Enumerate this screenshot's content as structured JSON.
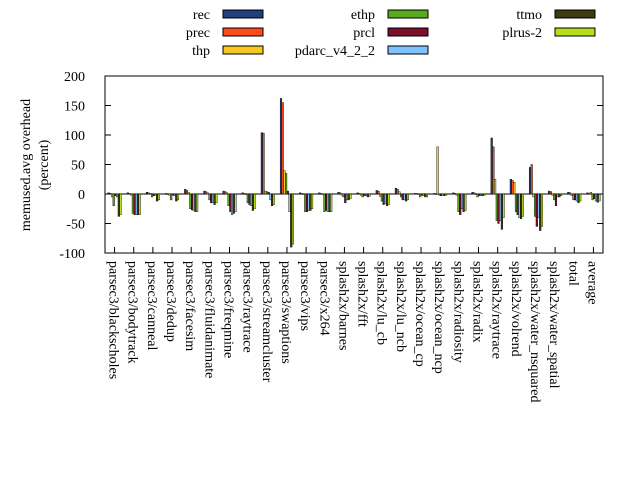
{
  "chart_data": {
    "type": "bar",
    "ylabel_lines": [
      "memused.avg overhead",
      "(percent)"
    ],
    "ylim": [
      -100,
      200
    ],
    "yticks": [
      -100,
      -50,
      0,
      50,
      100,
      150,
      200
    ],
    "categories": [
      "parsec3/blackscholes",
      "parsec3/bodytrack",
      "parsec3/canneal",
      "parsec3/dedup",
      "parsec3/facesim",
      "parsec3/fluidanimate",
      "parsec3/freqmine",
      "parsec3/raytrace",
      "parsec3/streamcluster",
      "parsec3/swaptions",
      "parsec3/vips",
      "parsec3/x264",
      "splash2x/barnes",
      "splash2x/fft",
      "splash2x/lu_cb",
      "splash2x/lu_ncb",
      "splash2x/ocean_cp",
      "splash2x/ocean_ncp",
      "splash2x/radiosity",
      "splash2x/radix",
      "splash2x/raytrace",
      "splash2x/volrend",
      "splash2x/water_nsquared",
      "splash2x/water_spatial",
      "total",
      "average"
    ],
    "series": [
      {
        "name": "rec",
        "color": "#1f3f7f",
        "values": [
          2,
          2,
          3,
          1,
          8,
          5,
          5,
          2,
          104,
          162,
          2,
          2,
          3,
          2,
          6,
          10,
          1,
          1,
          2,
          3,
          95,
          25,
          45,
          5,
          3,
          2
        ]
      },
      {
        "name": "prec",
        "color": "#ff4a1a",
        "values": [
          1,
          1,
          2,
          0,
          6,
          4,
          4,
          1,
          103,
          155,
          1,
          1,
          2,
          1,
          5,
          8,
          1,
          0,
          1,
          2,
          80,
          23,
          50,
          4,
          2,
          1
        ]
      },
      {
        "name": "thp",
        "color": "#f7c81e",
        "values": [
          -5,
          -2,
          1,
          -2,
          3,
          2,
          2,
          -1,
          5,
          40,
          0,
          -1,
          -2,
          -2,
          -4,
          4,
          -1,
          80,
          -2,
          -1,
          25,
          20,
          -5,
          -2,
          -3,
          3
        ]
      },
      {
        "name": "ethp",
        "color": "#5aaa1e",
        "values": [
          -20,
          -33,
          -5,
          -10,
          -25,
          -10,
          -20,
          -15,
          4,
          35,
          -30,
          -30,
          -5,
          -5,
          -12,
          -5,
          -5,
          -2,
          -30,
          -5,
          -45,
          -30,
          -38,
          -10,
          -10,
          -10
        ]
      },
      {
        "name": "prcl",
        "color": "#7a0f2e",
        "values": [
          -3,
          -35,
          -3,
          -2,
          -27,
          -15,
          -30,
          -18,
          3,
          5,
          -30,
          -28,
          -15,
          -3,
          -18,
          -10,
          -2,
          -3,
          -35,
          -3,
          -50,
          -35,
          -55,
          -20,
          -10,
          -8
        ]
      },
      {
        "name": "pdarc_v4_2_2",
        "color": "#7ec3ff",
        "values": [
          -5,
          -35,
          -2,
          -3,
          -28,
          -15,
          -35,
          -20,
          -10,
          -30,
          -28,
          -30,
          -10,
          -3,
          -16,
          -10,
          -3,
          -2,
          -25,
          -3,
          -45,
          -40,
          -40,
          -5,
          -12,
          -12
        ]
      },
      {
        "name": "ttmo",
        "color": "#3d3d10",
        "values": [
          -38,
          -35,
          -12,
          -12,
          -30,
          -18,
          -33,
          -28,
          -20,
          -90,
          -28,
          -30,
          -10,
          -5,
          -20,
          -12,
          -5,
          -3,
          -30,
          -3,
          -60,
          -42,
          -62,
          -5,
          -15,
          -14
        ]
      },
      {
        "name": "plrus-2",
        "color": "#b4df1a",
        "values": [
          -35,
          -35,
          -10,
          -10,
          -30,
          -15,
          -30,
          -25,
          -18,
          -85,
          -25,
          -30,
          -8,
          -4,
          -18,
          -10,
          -5,
          -2,
          -28,
          -2,
          -40,
          -38,
          -55,
          -3,
          -12,
          -12
        ]
      }
    ],
    "grid": false,
    "legend_placement": "top, three columns"
  }
}
